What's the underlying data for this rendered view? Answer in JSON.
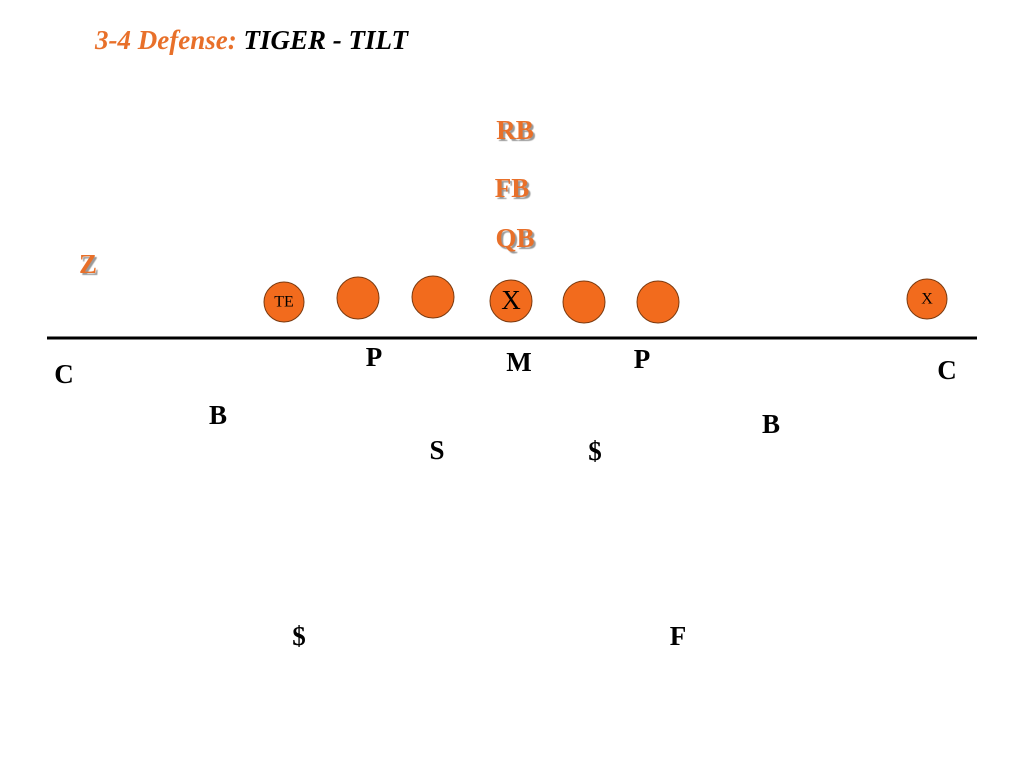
{
  "title": {
    "prefix": "3-4 Defense:",
    "name": "TIGER - TILT"
  },
  "offense": {
    "backs": [
      {
        "label": "RB"
      },
      {
        "label": "FB"
      },
      {
        "label": "QB"
      },
      {
        "label": "Z"
      }
    ],
    "circles": [
      {
        "label": "TE"
      },
      {
        "label": "X"
      },
      {
        "label": "X"
      }
    ]
  },
  "defense": [
    {
      "label": "C"
    },
    {
      "label": "P"
    },
    {
      "label": "M"
    },
    {
      "label": "P"
    },
    {
      "label": "C"
    },
    {
      "label": "B"
    },
    {
      "label": "B"
    },
    {
      "label": "S"
    },
    {
      "label": "$"
    },
    {
      "label": "$"
    },
    {
      "label": "F"
    }
  ]
}
